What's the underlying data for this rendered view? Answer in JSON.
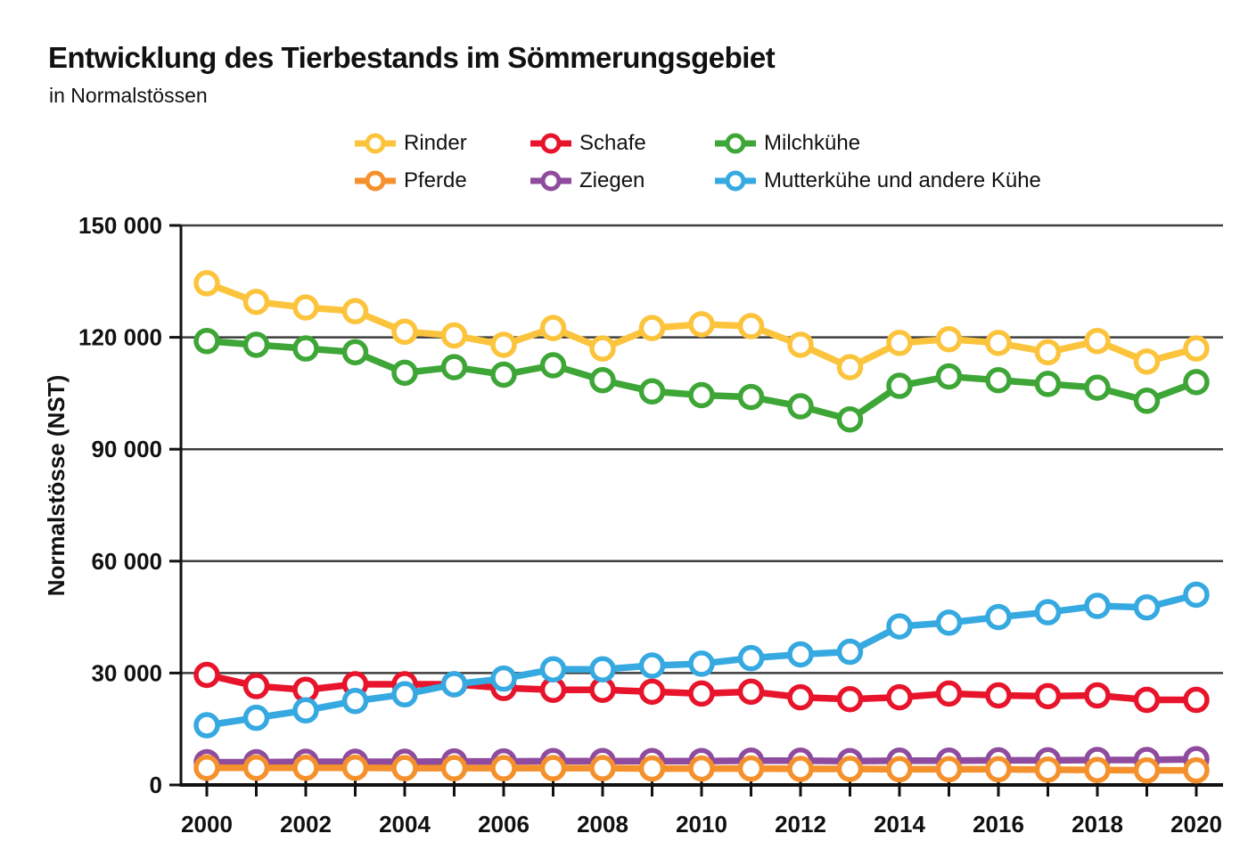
{
  "header": {
    "title": "Entwicklung des Tierbestands im Sömmerungsgebiet",
    "subtitle": "in Normalstössen"
  },
  "chart_data": {
    "type": "line",
    "title": "Entwicklung des Tierbestands im Sömmerungsgebiet",
    "subtitle": "in Normalstössen",
    "xlabel": "",
    "ylabel": "Normalstösse (NST)",
    "ylim": [
      0,
      150000
    ],
    "grid": "horizontal",
    "legend_position": "top",
    "x": [
      2000,
      2001,
      2002,
      2003,
      2004,
      2005,
      2006,
      2007,
      2008,
      2009,
      2010,
      2011,
      2012,
      2013,
      2014,
      2015,
      2016,
      2017,
      2018,
      2019,
      2020
    ],
    "xtick_labels": [
      "2000",
      "2002",
      "2004",
      "2006",
      "2008",
      "2010",
      "2012",
      "2014",
      "2016",
      "2018",
      "2020"
    ],
    "yticks": [
      {
        "value": 0,
        "label": "0"
      },
      {
        "value": 30000,
        "label": "30 000"
      },
      {
        "value": 60000,
        "label": "60 000"
      },
      {
        "value": 90000,
        "label": "90 000"
      },
      {
        "value": 120000,
        "label": "120 000"
      },
      {
        "value": 150000,
        "label": "150 000"
      }
    ],
    "series": [
      {
        "id": "rinder",
        "name": "Rinder",
        "color": "#FBC43C",
        "values": [
          134500,
          129500,
          128000,
          127000,
          121500,
          120500,
          118000,
          122500,
          117000,
          122500,
          123500,
          123000,
          118000,
          112000,
          118500,
          119500,
          118500,
          116000,
          119000,
          113500,
          117000
        ]
      },
      {
        "id": "schafe",
        "name": "Schafe",
        "color": "#E7142B",
        "values": [
          29500,
          26500,
          25500,
          27000,
          27000,
          27000,
          26000,
          25500,
          25500,
          25000,
          24500,
          25000,
          23500,
          23000,
          23500,
          24500,
          24000,
          23800,
          24000,
          22800,
          22800
        ]
      },
      {
        "id": "milchkuehe",
        "name": "Milchkühe",
        "color": "#3EA637",
        "values": [
          119000,
          118000,
          117000,
          116000,
          110500,
          112000,
          110000,
          112500,
          108500,
          105500,
          104500,
          104000,
          101500,
          98000,
          107000,
          109500,
          108500,
          107500,
          106500,
          103000,
          108000
        ]
      },
      {
        "id": "pferde",
        "name": "Pferde",
        "color": "#F4912C",
        "values": [
          4600,
          4600,
          4600,
          4600,
          4500,
          4500,
          4500,
          4500,
          4500,
          4400,
          4400,
          4400,
          4300,
          4300,
          4200,
          4200,
          4200,
          4100,
          4000,
          3900,
          3900
        ]
      },
      {
        "id": "ziegen",
        "name": "Ziegen",
        "color": "#8F4B9D",
        "values": [
          6100,
          6100,
          6200,
          6200,
          6200,
          6300,
          6300,
          6400,
          6400,
          6400,
          6400,
          6500,
          6500,
          6400,
          6500,
          6500,
          6600,
          6600,
          6700,
          6700,
          6900
        ]
      },
      {
        "id": "mutterkuehe-und-andere-kuehe",
        "name": "Mutterkühe und andere Kühe",
        "color": "#36A9E1",
        "values": [
          16000,
          18000,
          20000,
          22500,
          24300,
          27000,
          28500,
          31000,
          31000,
          32000,
          32500,
          34000,
          35000,
          35700,
          42500,
          43500,
          45000,
          46300,
          48000,
          47600,
          51000
        ]
      }
    ],
    "draw_order": [
      4,
      3,
      1,
      5,
      2,
      0
    ]
  }
}
